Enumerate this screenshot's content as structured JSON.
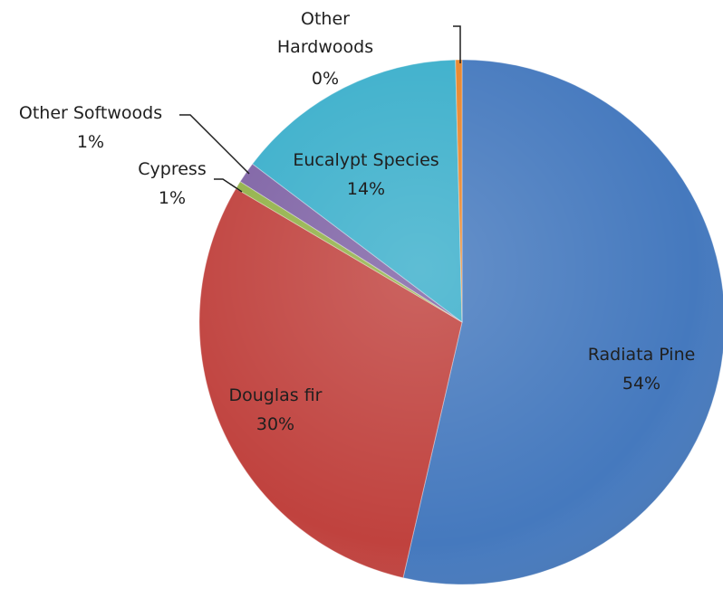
{
  "chart_data": {
    "type": "pie",
    "title": "",
    "legend": "none",
    "slices": [
      {
        "name": "Radiata Pine",
        "value": 53.6,
        "percent_label": "54%",
        "color": "#4579BE"
      },
      {
        "name": "Douglas fir",
        "value": 29.9,
        "percent_label": "30%",
        "color": "#C0423E"
      },
      {
        "name": "Cypress",
        "value": 0.5,
        "percent_label": "1%",
        "color": "#93B24A"
      },
      {
        "name": "Other Softwoods",
        "value": 1.3,
        "percent_label": "1%",
        "color": "#7F63A5"
      },
      {
        "name": "Eucalypt Species",
        "value": 14.3,
        "percent_label": "14%",
        "color": "#3BAFCB"
      },
      {
        "name": "Other Hardwoods",
        "value": 0.4,
        "percent_label": "0%",
        "color": "#E8852A"
      }
    ]
  }
}
